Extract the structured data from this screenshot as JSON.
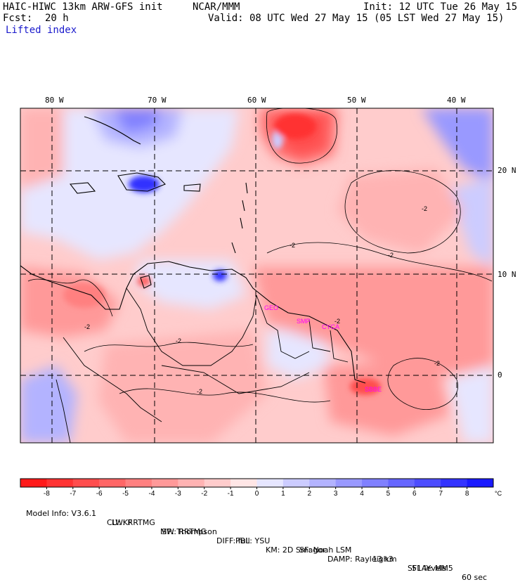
{
  "header": {
    "model_title": "HAIC-HIWC 13km ARW-GFS init",
    "org": "NCAR/MMM",
    "init": "Init: 12 UTC Tue 26 May 15",
    "fcst_label": "Fcst:",
    "fcst_value": "20 h",
    "valid": "Valid: 08 UTC Wed 27 May 15 (05 LST Wed 27 May 15)",
    "field": "Lifted index"
  },
  "map": {
    "lon_labels": [
      "80 W",
      "70 W",
      "60 W",
      "50 W",
      "40 W"
    ],
    "lat_labels": [
      "20 N",
      "10 N",
      "0"
    ],
    "station_labels": [
      "GEO",
      "SMP",
      "CYCA",
      "SBBE"
    ],
    "contour_labels": [
      "-2",
      "-2",
      "-2",
      "-2",
      "-2",
      "-2",
      "-2",
      "-2"
    ],
    "colors": {
      "station": "#ff00ff",
      "contour": "#000000",
      "grid": "#000000"
    }
  },
  "colorbar": {
    "ticks": [
      "-8",
      "-7",
      "-6",
      "-5",
      "-4",
      "-3",
      "-2",
      "-1",
      "0",
      "1",
      "2",
      "3",
      "4",
      "5",
      "6",
      "7",
      "8"
    ],
    "unit": "°C",
    "colors": [
      "#ff1a1a",
      "#ff3333",
      "#ff4d4d",
      "#ff6666",
      "#ff8080",
      "#ff9999",
      "#ffb3b3",
      "#ffcccc",
      "#ffe6e6",
      "#e6e6ff",
      "#ccccff",
      "#b3b3ff",
      "#9999ff",
      "#8080ff",
      "#6666ff",
      "#4d4dff",
      "#3333ff",
      "#1a1aff"
    ]
  },
  "footer": {
    "line1": [
      "Model Info: V3.6.1",
      "CU: KF",
      "MP: Thompson",
      "PBL: YSU",
      "SF: Noah LSM",
      "13 km",
      "51 levels",
      "60 sec"
    ],
    "line2": [
      "LW: RRTMG",
      "SW: RRTMG",
      "DIFF: full",
      "KM: 2D Smagor",
      "DAMP: Rayleigh3",
      "SFLAY: MM5"
    ]
  }
}
